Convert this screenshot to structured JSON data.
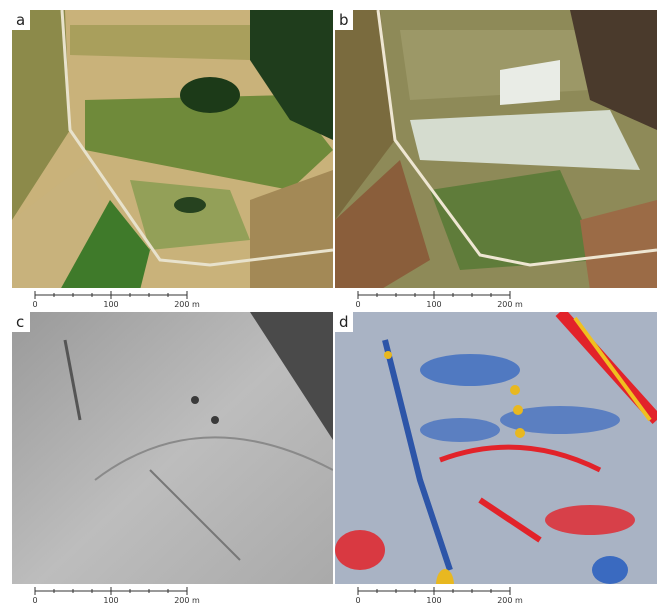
{
  "panels": [
    {
      "label": "a",
      "scale_labels": [
        "0",
        "100",
        "200 m"
      ]
    },
    {
      "label": "b",
      "scale_labels": [
        "0",
        "100",
        "200 m"
      ]
    },
    {
      "label": "c",
      "scale_labels": [
        "0",
        "100",
        "200 m"
      ]
    },
    {
      "label": "d",
      "scale_labels": [
        "0",
        "100",
        "200 m"
      ]
    }
  ]
}
